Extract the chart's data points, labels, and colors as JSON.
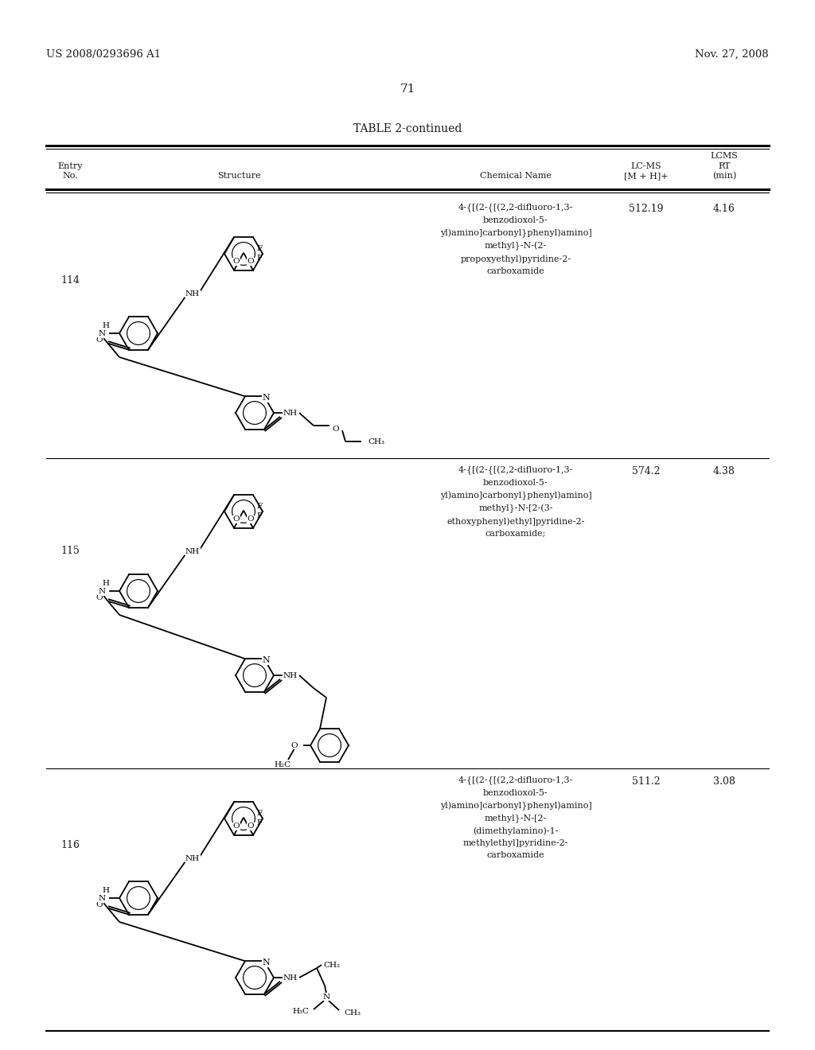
{
  "background_color": "#ffffff",
  "page_number": "71",
  "left_header": "US 2008/0293696 A1",
  "right_header": "Nov. 27, 2008",
  "table_title": "TABLE 2-continued",
  "entries": [
    {
      "no": "114",
      "lcms_val": "512.19",
      "rt_val": "4.16",
      "chemical_name": "4-{[(2-{[(2,2-difluoro-1,3-\nbenzodioxol-5-\nyl)amino]carbonyl}phenyl)amino]\nmethyl}-N-(2-\npropoxyethyl)pyridine-2-\ncarboxamide"
    },
    {
      "no": "115",
      "lcms_val": "574.2",
      "rt_val": "4.38",
      "chemical_name": "4-{[(2-{[(2,2-difluoro-1,3-\nbenzodioxol-5-\nyl)amino]carbonyl}phenyl)amino]\nmethyl}-N-[2-(3-\nethoxyphenyl)ethyl]pyridine-2-\ncarboxamide;"
    },
    {
      "no": "116",
      "lcms_val": "511.2",
      "rt_val": "3.08",
      "chemical_name": "4-{[(2-{[(2,2-difluoro-1,3-\nbenzodioxol-5-\nyl)amino]carbonyl}phenyl)amino]\nmethyl}-N-[2-\n(dimethylamino)-1-\nmethylethyl]pyridine-2-\ncarboxamide"
    }
  ]
}
